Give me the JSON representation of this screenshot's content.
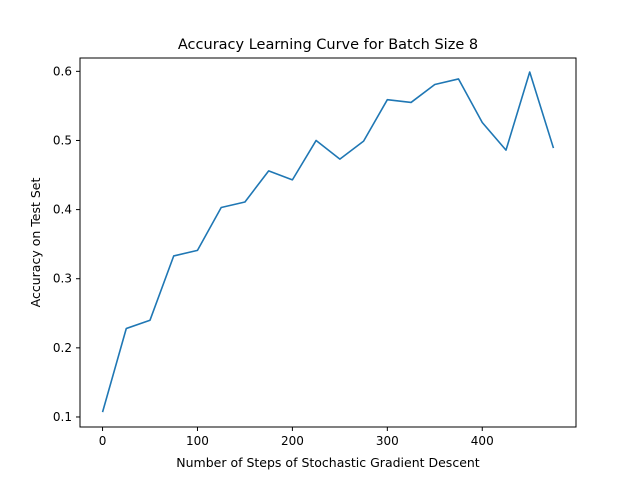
{
  "chart_data": {
    "type": "line",
    "title": "Accuracy Learning Curve for Batch Size 8",
    "xlabel": "Number of Steps of Stochastic Gradient Descent",
    "ylabel": "Accuracy on Test Set",
    "xlim": [
      -23.75,
      498.75
    ],
    "ylim": [
      0.0855,
      0.6193
    ],
    "xticks": [
      0,
      100,
      200,
      300,
      400
    ],
    "yticks": [
      0.1,
      0.2,
      0.3,
      0.4,
      0.5,
      0.6
    ],
    "xtick_labels": [
      "0",
      "100",
      "200",
      "300",
      "400"
    ],
    "ytick_labels": [
      "0.1",
      "0.2",
      "0.3",
      "0.4",
      "0.5",
      "0.6"
    ],
    "grid": false,
    "series": [
      {
        "color": "#1f77b4",
        "x": [
          0,
          25,
          50,
          75,
          100,
          125,
          150,
          175,
          200,
          225,
          250,
          275,
          300,
          325,
          350,
          375,
          400,
          425,
          450,
          475
        ],
        "y": [
          0.107,
          0.228,
          0.24,
          0.333,
          0.341,
          0.403,
          0.411,
          0.456,
          0.443,
          0.5,
          0.473,
          0.499,
          0.559,
          0.555,
          0.581,
          0.589,
          0.526,
          0.486,
          0.599,
          0.489
        ]
      }
    ]
  }
}
